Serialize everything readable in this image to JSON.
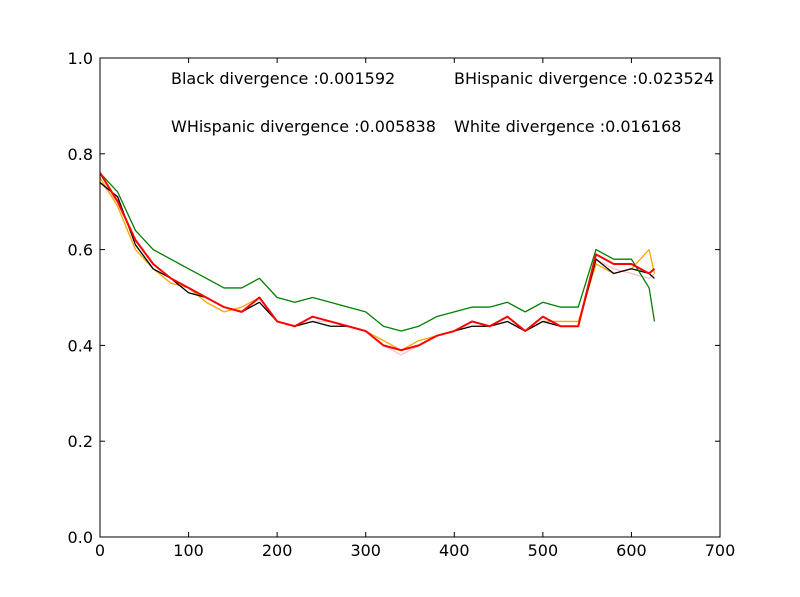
{
  "chart_data": {
    "type": "line",
    "title": "",
    "xlabel": "",
    "ylabel": "",
    "xlim": [
      0,
      700
    ],
    "ylim": [
      0.0,
      1.0
    ],
    "grid": false,
    "x_ticks": [
      0,
      100,
      200,
      300,
      400,
      500,
      600,
      700
    ],
    "x_tick_labels": [
      "0",
      "100",
      "200",
      "300",
      "400",
      "500",
      "600",
      "700"
    ],
    "y_ticks": [
      0.0,
      0.2,
      0.4,
      0.6,
      0.8,
      1.0
    ],
    "y_tick_labels": [
      "0.0",
      "0.2",
      "0.4",
      "0.6",
      "0.8",
      "1.0"
    ],
    "annotations": [
      "Black divergence :0.001592",
      "BHispanic divergence :0.023524",
      "WHispanic divergence :0.005838",
      "White divergence :0.016168"
    ],
    "series": [
      {
        "color": "#ffc0cb",
        "x": [
          0,
          20,
          40,
          60,
          80,
          100,
          120,
          140,
          160,
          180,
          200,
          220,
          240,
          260,
          280,
          300,
          320,
          340,
          360,
          380,
          400,
          420,
          440,
          460,
          480,
          500,
          520,
          540,
          560,
          580,
          600,
          620,
          626
        ],
        "y": [
          0.74,
          0.7,
          0.62,
          0.57,
          0.54,
          0.52,
          0.5,
          0.48,
          0.47,
          0.5,
          0.45,
          0.44,
          0.45,
          0.45,
          0.44,
          0.43,
          0.4,
          0.38,
          0.4,
          0.42,
          0.43,
          0.44,
          0.44,
          0.45,
          0.43,
          0.45,
          0.44,
          0.44,
          0.58,
          0.56,
          0.55,
          0.54,
          0.55
        ]
      },
      {
        "color": "#ffa500",
        "x": [
          0,
          20,
          40,
          60,
          80,
          100,
          120,
          140,
          160,
          180,
          200,
          220,
          240,
          260,
          280,
          300,
          320,
          340,
          360,
          380,
          400,
          420,
          440,
          460,
          480,
          500,
          520,
          540,
          560,
          580,
          600,
          620,
          626
        ],
        "y": [
          0.75,
          0.69,
          0.6,
          0.56,
          0.53,
          0.52,
          0.49,
          0.47,
          0.48,
          0.5,
          0.45,
          0.44,
          0.46,
          0.45,
          0.44,
          0.43,
          0.41,
          0.39,
          0.41,
          0.42,
          0.43,
          0.45,
          0.44,
          0.46,
          0.43,
          0.45,
          0.45,
          0.45,
          0.57,
          0.55,
          0.56,
          0.6,
          0.55
        ]
      },
      {
        "color": "#000000",
        "x": [
          0,
          20,
          40,
          60,
          80,
          100,
          120,
          140,
          160,
          180,
          200,
          220,
          240,
          260,
          280,
          300,
          320,
          340,
          360,
          380,
          400,
          420,
          440,
          460,
          480,
          500,
          520,
          540,
          560,
          580,
          600,
          620,
          626
        ],
        "y": [
          0.74,
          0.71,
          0.61,
          0.56,
          0.54,
          0.51,
          0.5,
          0.48,
          0.47,
          0.49,
          0.45,
          0.44,
          0.45,
          0.44,
          0.44,
          0.43,
          0.4,
          0.39,
          0.4,
          0.42,
          0.43,
          0.44,
          0.44,
          0.45,
          0.43,
          0.45,
          0.44,
          0.44,
          0.58,
          0.55,
          0.56,
          0.55,
          0.54
        ]
      },
      {
        "color": "#008000",
        "x": [
          0,
          20,
          40,
          60,
          80,
          100,
          120,
          140,
          160,
          180,
          200,
          220,
          240,
          260,
          280,
          300,
          320,
          340,
          360,
          380,
          400,
          420,
          440,
          460,
          480,
          500,
          520,
          540,
          560,
          580,
          600,
          620,
          626
        ],
        "y": [
          0.76,
          0.72,
          0.64,
          0.6,
          0.58,
          0.56,
          0.54,
          0.52,
          0.52,
          0.54,
          0.5,
          0.49,
          0.5,
          0.49,
          0.48,
          0.47,
          0.44,
          0.43,
          0.44,
          0.46,
          0.47,
          0.48,
          0.48,
          0.49,
          0.47,
          0.49,
          0.48,
          0.48,
          0.6,
          0.58,
          0.58,
          0.52,
          0.45
        ]
      },
      {
        "color": "#ff0000",
        "x": [
          0,
          20,
          40,
          60,
          80,
          100,
          120,
          140,
          160,
          180,
          200,
          220,
          240,
          260,
          280,
          300,
          320,
          340,
          360,
          380,
          400,
          420,
          440,
          460,
          480,
          500,
          520,
          540,
          560,
          580,
          600,
          620,
          626
        ],
        "y": [
          0.76,
          0.7,
          0.62,
          0.57,
          0.54,
          0.52,
          0.5,
          0.48,
          0.47,
          0.5,
          0.45,
          0.44,
          0.46,
          0.45,
          0.44,
          0.43,
          0.4,
          0.39,
          0.4,
          0.42,
          0.43,
          0.45,
          0.44,
          0.46,
          0.43,
          0.46,
          0.44,
          0.44,
          0.59,
          0.57,
          0.57,
          0.55,
          0.56
        ]
      }
    ]
  }
}
